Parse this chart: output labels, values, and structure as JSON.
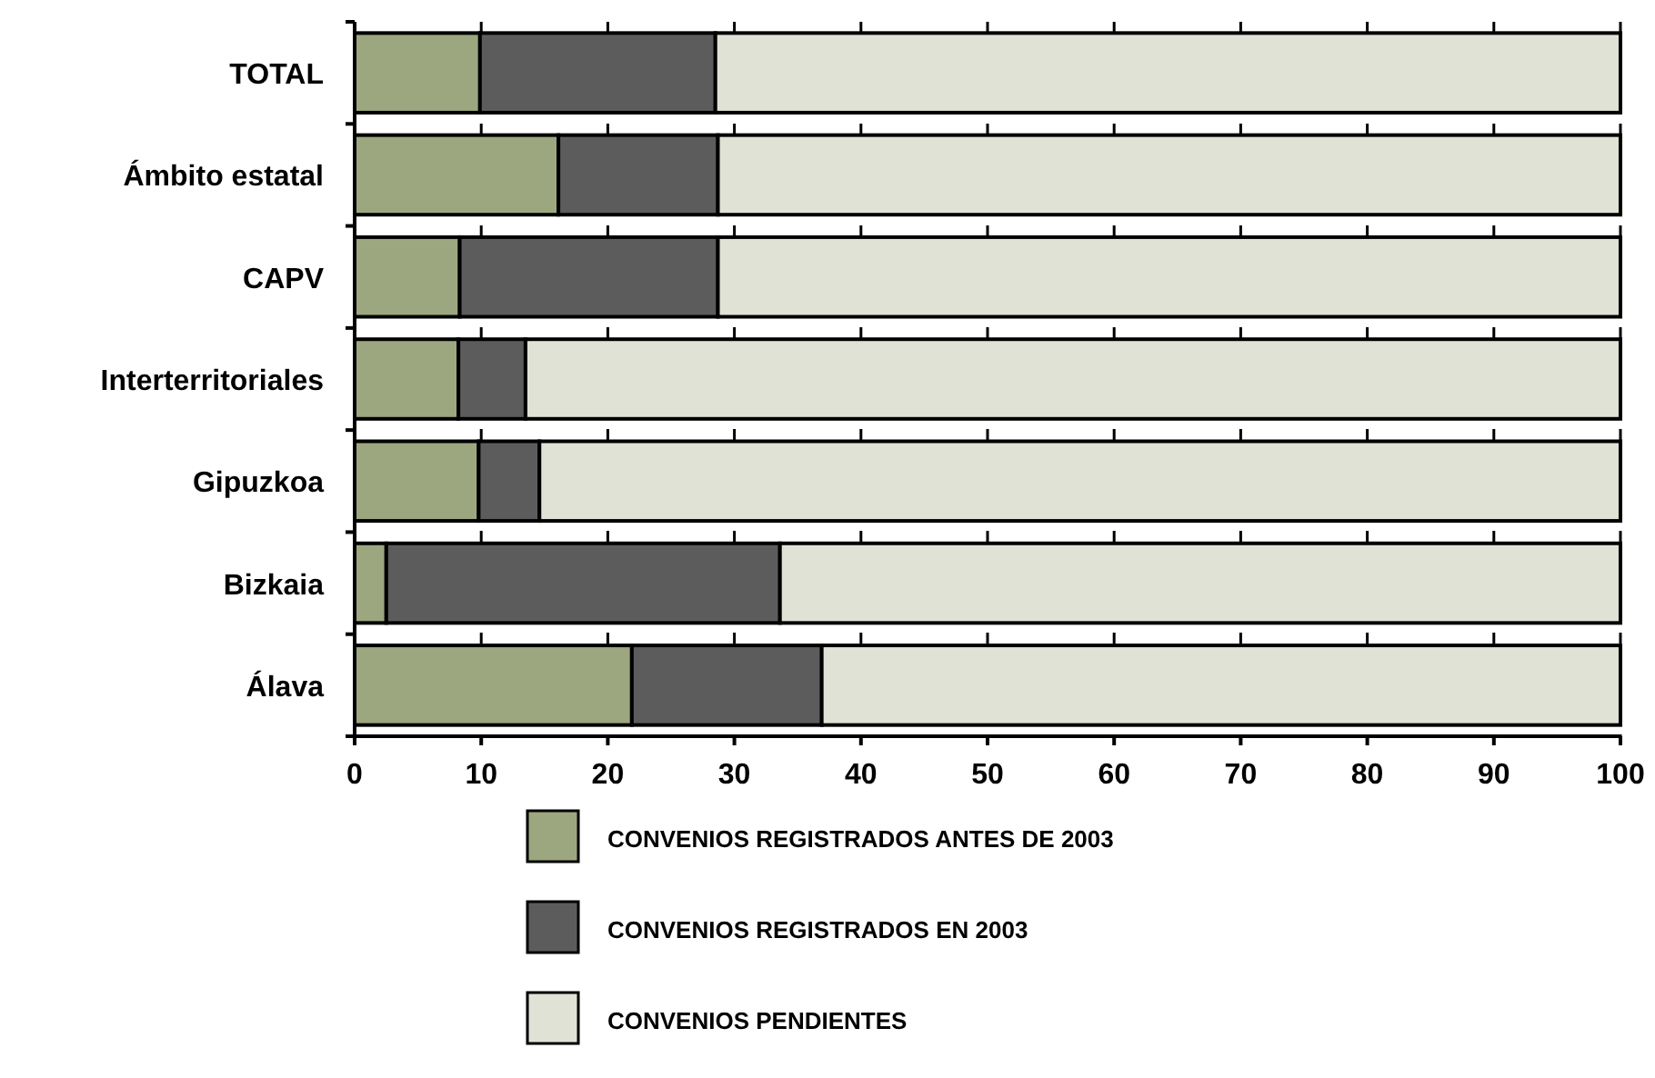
{
  "chart_data": {
    "type": "bar",
    "orientation": "horizontal",
    "stacked": true,
    "categories": [
      "TOTAL",
      "Ámbito estatal",
      "CAPV",
      "Interterritoriales",
      "Gipuzkoa",
      "Bizkaia",
      "Álava"
    ],
    "series": [
      {
        "name": "CONVENIOS REGISTRADOS ANTES DE 2003",
        "color": "#9ca780",
        "values": [
          9.9,
          16.1,
          8.3,
          8.2,
          9.8,
          2.5,
          21.9
        ]
      },
      {
        "name": "CONVENIOS REGISTRADOS EN 2003",
        "color": "#5c5c5c",
        "values": [
          18.6,
          12.6,
          20.4,
          5.3,
          4.8,
          31.1,
          15.0
        ]
      },
      {
        "name": "CONVENIOS PENDIENTES",
        "color": "#dfe2d5",
        "values": [
          71.5,
          71.3,
          71.3,
          86.5,
          85.4,
          66.4,
          63.1
        ]
      }
    ],
    "xlim": [
      0,
      100
    ],
    "xticks": [
      0,
      10,
      20,
      30,
      40,
      50,
      60,
      70,
      80,
      90,
      100
    ],
    "grid": "x",
    "legend": "bottom"
  }
}
